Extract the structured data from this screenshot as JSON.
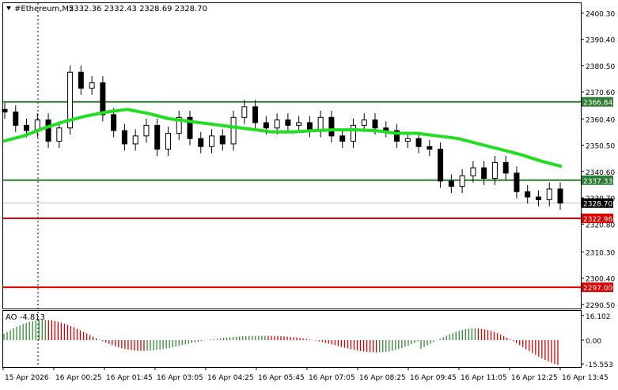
{
  "header": {
    "dropdown_icon": "triangle-down-icon",
    "symbol": "#Ethereum,M5",
    "ohlc": "2332.36 2332.43 2328.69 2328.70"
  },
  "price_axis": {
    "ticks": [
      "2400.30",
      "2390.40",
      "2380.50",
      "2370.60",
      "2360.40",
      "2350.50",
      "2340.60",
      "2330.70",
      "2320.80",
      "2310.30",
      "2300.40",
      "2290.50"
    ],
    "tick_values": [
      2400.3,
      2390.4,
      2380.5,
      2370.6,
      2360.4,
      2350.5,
      2340.6,
      2330.7,
      2320.8,
      2310.3,
      2300.4,
      2290.5
    ],
    "range": [
      2289.0,
      2404.0
    ]
  },
  "levels": [
    {
      "label": "2366.84",
      "value": 2366.84,
      "color": "#2e7d32"
    },
    {
      "label": "2337.33",
      "value": 2337.33,
      "color": "#2e7d32"
    },
    {
      "label": "2322.96",
      "value": 2322.96,
      "color": "#e00000"
    },
    {
      "label": "2297.00",
      "value": 2297.0,
      "color": "#e00000"
    }
  ],
  "current_price": {
    "label": "2328.70",
    "value": 2328.7,
    "color": "#000000"
  },
  "oscillator": {
    "label": "AO -4.813",
    "ticks": [
      "16.102",
      "0.00",
      "-15.553"
    ],
    "tick_values": [
      16.102,
      0.0,
      -15.553
    ],
    "up_color": "#2e8b2e",
    "down_color": "#d40000"
  },
  "time_axis": {
    "labels": [
      "15 Apr 2026",
      "16 Apr 00:25",
      "16 Apr 01:45",
      "16 Apr 03:05",
      "16 Apr 04:25",
      "16 Apr 05:45",
      "16 Apr 07:05",
      "16 Apr 08:25",
      "16 Apr 09:45",
      "16 Apr 11:05",
      "16 Apr 12:25",
      "16 Apr 13:45"
    ]
  },
  "colors": {
    "ma_line": "#22dd22",
    "candle": "#000000",
    "background": "#ffffff"
  },
  "chart_data": {
    "type": "candlestick",
    "ma_series": [
      2352.0,
      2354.0,
      2357.0,
      2359.5,
      2361.5,
      2363.0,
      2364.0,
      2362.5,
      2360.5,
      2359.5,
      2358.5,
      2357.5,
      2356.5,
      2355.5,
      2355.5,
      2356.0,
      2356.3,
      2356.3,
      2356.0,
      2355.0,
      2355.0,
      2354.0,
      2353.0,
      2351.0,
      2349.0,
      2347.0,
      2344.5,
      2342.5
    ],
    "close_series": [
      2363,
      2358,
      2356,
      2360,
      2352,
      2357,
      2378,
      2372,
      2374,
      2362,
      2356,
      2351,
      2354,
      2358,
      2349,
      2355,
      2361,
      2353,
      2350,
      2354,
      2351,
      2361,
      2365,
      2359,
      2357,
      2360,
      2358,
      2359,
      2356,
      2361,
      2354,
      2352,
      2358,
      2360,
      2357,
      2356,
      2352,
      2353,
      2350,
      2349,
      2337,
      2335,
      2339,
      2342,
      2338,
      2344,
      2340,
      2333,
      2331,
      2330,
      2334,
      2328.7
    ]
  }
}
